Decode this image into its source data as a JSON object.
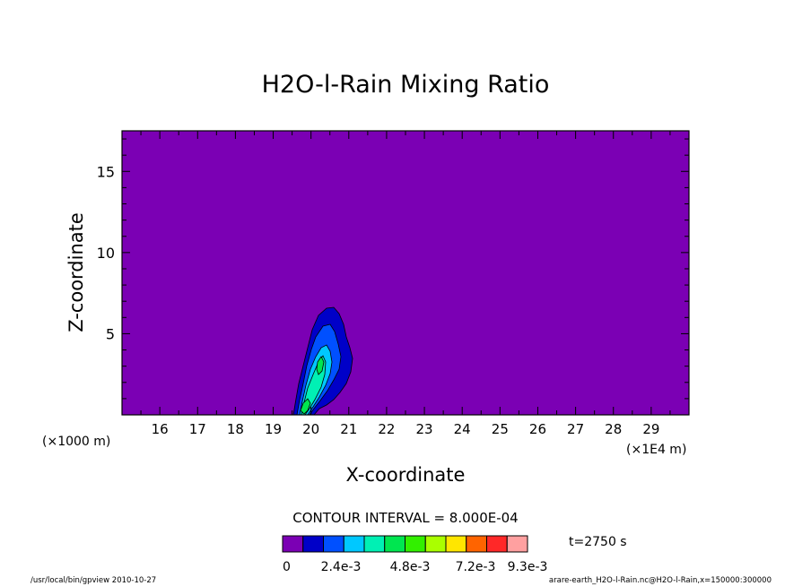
{
  "chart_data": {
    "type": "heatmap",
    "title": "H2O-l-Rain Mixing Ratio",
    "xlabel": "X-coordinate",
    "ylabel": "Z-coordinate",
    "x_unit_label": "(×1E4 m)",
    "y_unit_label": "(×1000 m)",
    "x_ticks": [
      16,
      17,
      18,
      19,
      20,
      21,
      22,
      23,
      24,
      25,
      26,
      27,
      28,
      29
    ],
    "y_ticks": [
      5,
      10,
      15
    ],
    "xlim": [
      15,
      30
    ],
    "ylim": [
      0,
      17.5
    ],
    "contour_interval_label": "CONTOUR INTERVAL = 8.000E-04",
    "time_label": "t=2750 s",
    "colorbar": {
      "colors": [
        "#7b00b4",
        "#0000c8",
        "#0050ff",
        "#00c8ff",
        "#00f0b4",
        "#00e650",
        "#32f000",
        "#aaff00",
        "#ffe600",
        "#ff6400",
        "#ff2828",
        "#ffa0a0"
      ],
      "tick_labels": [
        "0",
        "2.4e-3",
        "4.8e-3",
        "7.2e-3",
        "9.3e-3"
      ]
    },
    "field_levels": {
      "background": "#7b00b4",
      "level1": "#0000c8",
      "level2": "#0050ff",
      "level3": "#00c8ff",
      "level4": "#00f0b4",
      "level5": "#00e650"
    }
  },
  "footer": {
    "left": "/usr/local/bin/gpview  2010-10-27",
    "right": "arare-earth_H2O-l-Rain.nc@H2O-l-Rain,x=150000:300000"
  }
}
